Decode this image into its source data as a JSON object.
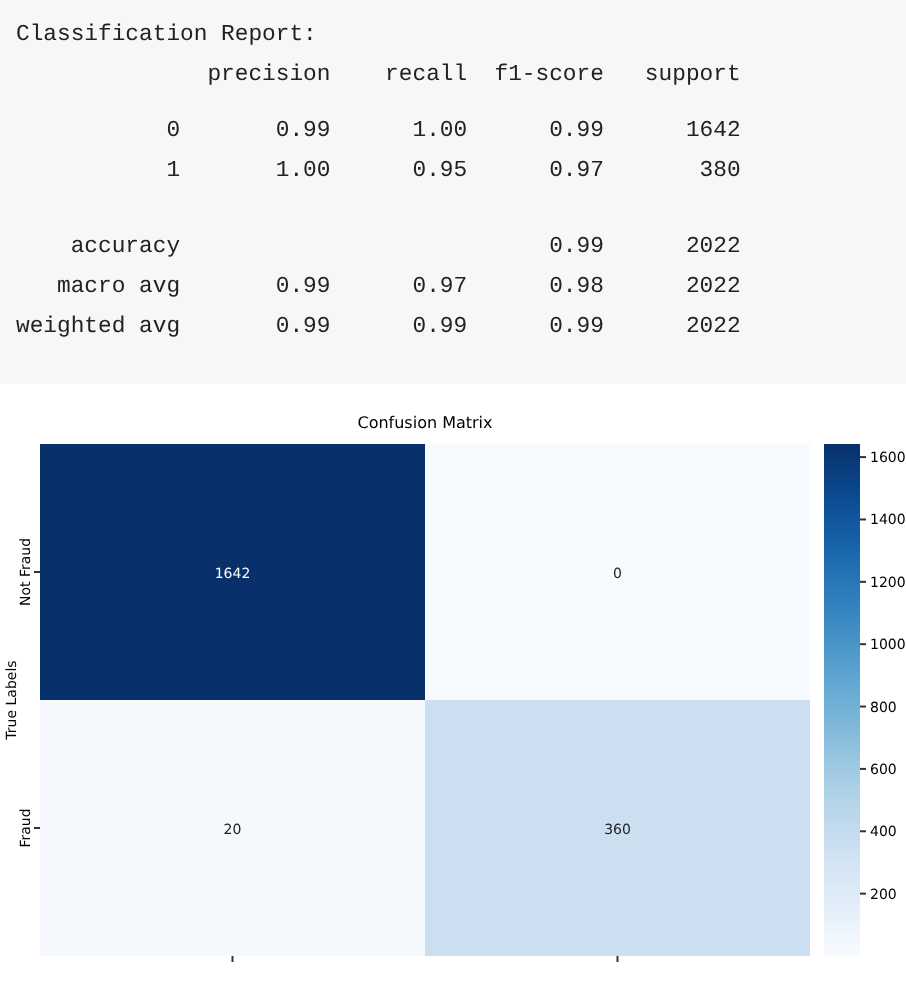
{
  "chart_data": [
    {
      "type": "other",
      "annotations": [
        "Classification Report:",
        "              precision    recall  f1-score   support",
        "           0       0.99      1.00      0.99      1642",
        "           1       1.00      0.95      0.97       380",
        "    accuracy                           0.99      2022",
        "   macro avg       0.99      0.97      0.98      2022",
        "weighted avg       0.99      0.99      0.99      2022"
      ]
    },
    {
      "type": "heatmap",
      "title": "Confusion Matrix",
      "ylabel": "True Labels",
      "categories": [
        null,
        null
      ],
      "y_categories": [
        "Not Fraud",
        "Fraud"
      ],
      "cells": [
        [
          1642,
          0
        ],
        [
          20,
          360
        ]
      ],
      "data_labels": true,
      "clim": [
        0,
        1642
      ],
      "cticks": [
        200,
        400,
        600,
        800,
        1000,
        1200,
        1400,
        1600
      ]
    }
  ]
}
